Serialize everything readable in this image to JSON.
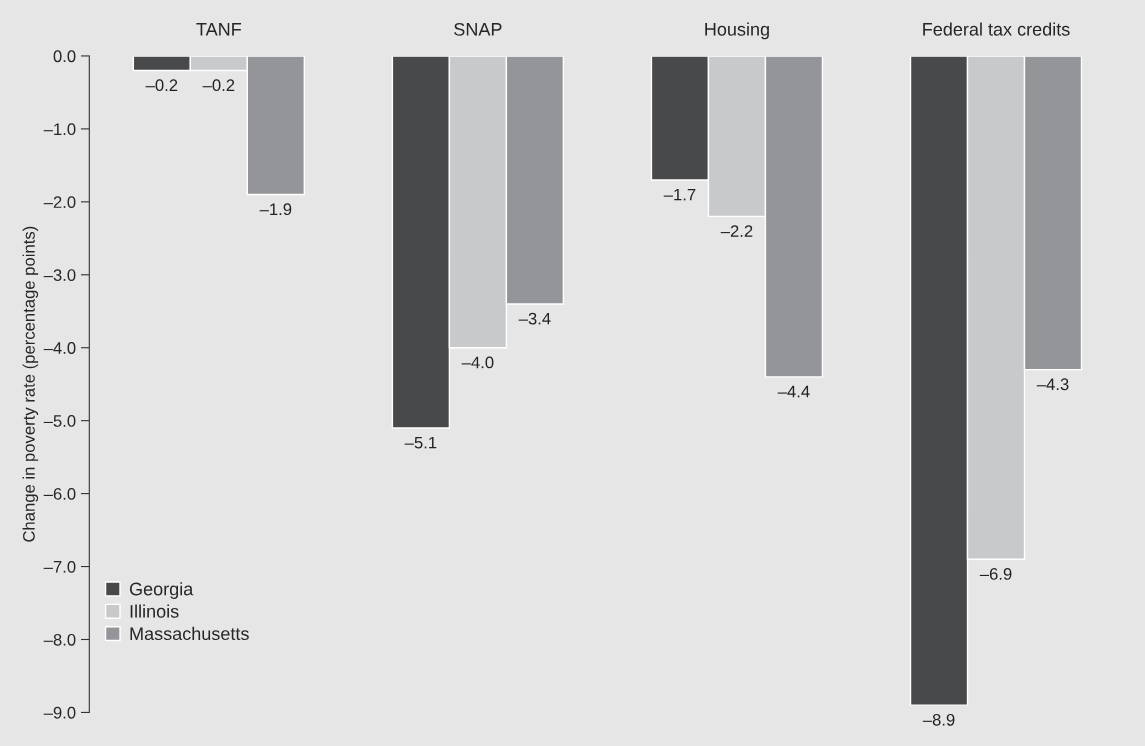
{
  "chart_data": {
    "type": "bar",
    "ylabel": "Change in poverty rate (percentage points)",
    "categories": [
      "TANF",
      "SNAP",
      "Housing",
      "Federal tax credits"
    ],
    "series": [
      {
        "name": "Georgia",
        "color": "#48494b",
        "values": [
          -0.2,
          -5.1,
          -1.7,
          -8.9
        ],
        "value_labels": [
          "–0.2",
          "–5.1",
          "–1.7",
          "–8.9"
        ]
      },
      {
        "name": "Illinois",
        "color": "#c8c9cb",
        "values": [
          -0.2,
          -4.0,
          -2.2,
          -6.9
        ],
        "value_labels": [
          "–0.2",
          "–4.0",
          "–2.2",
          "–6.9"
        ]
      },
      {
        "name": "Massachusetts",
        "color": "#939598",
        "values": [
          -1.9,
          -3.4,
          -4.4,
          -4.3
        ],
        "value_labels": [
          "–1.9",
          "–3.4",
          "–4.4",
          "–4.3"
        ]
      }
    ],
    "ylim": [
      -9.0,
      0.0
    ],
    "yticks": [
      {
        "value": 0,
        "label": "0.0"
      },
      {
        "value": -1,
        "label": "–1.0"
      },
      {
        "value": -2,
        "label": "–2.0"
      },
      {
        "value": -3,
        "label": "–3.0"
      },
      {
        "value": -4,
        "label": "–4.0"
      },
      {
        "value": -5,
        "label": "–5.0"
      },
      {
        "value": -6,
        "label": "–6.0"
      },
      {
        "value": -7,
        "label": "–7.0"
      },
      {
        "value": -8,
        "label": "–8.0"
      },
      {
        "value": -9,
        "label": "–9.0"
      }
    ],
    "grid": false,
    "legend": "bottom left"
  }
}
